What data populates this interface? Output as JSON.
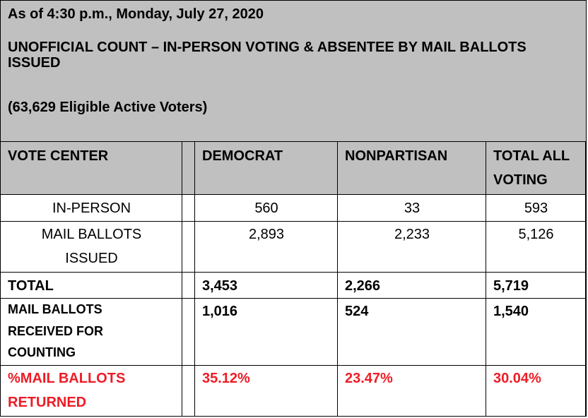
{
  "header": {
    "date": "As of 4:30 p.m., Monday, July 27, 2020",
    "title": "UNOFFICIAL COUNT – IN-PERSON VOTING & ABSENTEE BY MAIL BALLOTS ISSUED",
    "eligible": "(63,629 Eligible Active Voters)"
  },
  "columns": {
    "vote_center": "VOTE CENTER",
    "democrat": "DEMOCRAT",
    "nonpartisan": "NONPARTISAN",
    "total_line1": "TOTAL ALL",
    "total_line2": "VOTING"
  },
  "rows": {
    "in_person": {
      "label": "IN-PERSON",
      "democrat": "560",
      "nonpartisan": "33",
      "total": "593"
    },
    "mail_issued": {
      "label_line1": "MAIL BALLOTS",
      "label_line2": "ISSUED",
      "democrat": "2,893",
      "nonpartisan": "2,233",
      "total": "5,126"
    },
    "total": {
      "label": "TOTAL",
      "democrat": "3,453",
      "nonpartisan": "2,266",
      "total": "5,719"
    },
    "received": {
      "label_line1": "MAIL BALLOTS",
      "label_line2": "RECEIVED FOR",
      "label_line3": "COUNTING",
      "democrat": "1,016",
      "nonpartisan": "524",
      "total": "1,540"
    },
    "returned_pct": {
      "label_line1": "%MAIL BALLOTS",
      "label_line2": "RETURNED",
      "democrat": "35.12%",
      "nonpartisan": "23.47%",
      "total": "30.04%"
    }
  },
  "colors": {
    "header_bg": "#c0c0c0",
    "highlight": "#ee1c25"
  }
}
